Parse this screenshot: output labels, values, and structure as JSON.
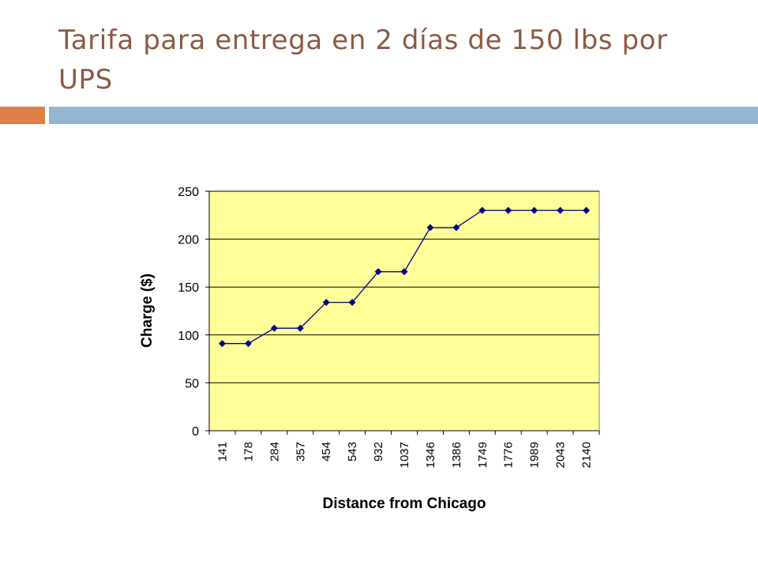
{
  "slide": {
    "title": "Tarifa para entrega en 2 días de 150 lbs por UPS"
  },
  "colors": {
    "title": "#8a5a44",
    "accent_bar": "#dd8047",
    "rule_bar": "#94b6d2",
    "plot_background": "#ffff99",
    "series_line": "#000080"
  },
  "chart_data": {
    "type": "line",
    "title": "",
    "xlabel": "Distance from Chicago",
    "ylabel": "Charge ($)",
    "categories": [
      "141",
      "178",
      "284",
      "357",
      "454",
      "543",
      "932",
      "1037",
      "1346",
      "1386",
      "1749",
      "1776",
      "1989",
      "2043",
      "2140"
    ],
    "series": [
      {
        "values": [
          91,
          91,
          107,
          107,
          134,
          134,
          166,
          166,
          212,
          212,
          230,
          230,
          230,
          230,
          230
        ]
      }
    ],
    "ylim": [
      0,
      250
    ],
    "yticks": [
      "0",
      "50",
      "100",
      "150",
      "200",
      "250"
    ],
    "grid": "horizontal",
    "legend": "none",
    "marker": "diamond"
  }
}
